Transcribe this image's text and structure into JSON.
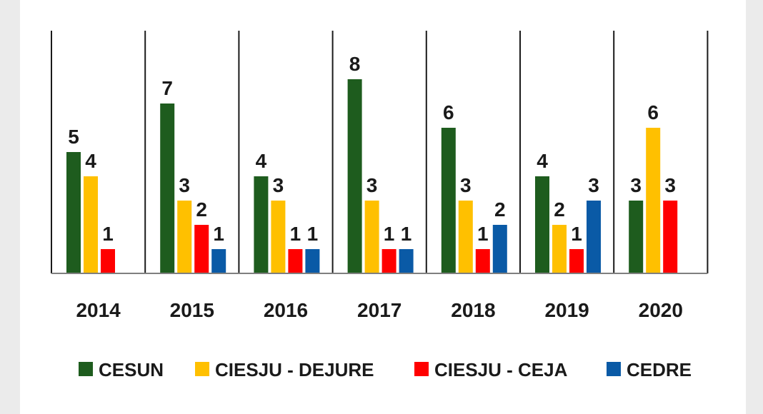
{
  "chart_data": {
    "type": "bar",
    "categories": [
      "2014",
      "2015",
      "2016",
      "2017",
      "2018",
      "2019",
      "2020"
    ],
    "series": [
      {
        "name": "CESUN",
        "color": "#1e5c1e",
        "values": [
          5,
          7,
          4,
          8,
          6,
          4,
          3
        ]
      },
      {
        "name": "CIESJU - DEJURE",
        "color": "#ffc000",
        "values": [
          4,
          3,
          3,
          3,
          3,
          2,
          6
        ]
      },
      {
        "name": "CIESJU - CEJA",
        "color": "#ff0000",
        "values": [
          1,
          2,
          1,
          1,
          1,
          1,
          3
        ]
      },
      {
        "name": "CEDRE",
        "color": "#0a5aa6",
        "values": [
          null,
          1,
          1,
          1,
          2,
          3,
          null
        ]
      }
    ],
    "ylim": [
      0,
      8
    ],
    "grid": false,
    "legend_position": "bottom",
    "title": "",
    "xlabel": "",
    "ylabel": ""
  }
}
